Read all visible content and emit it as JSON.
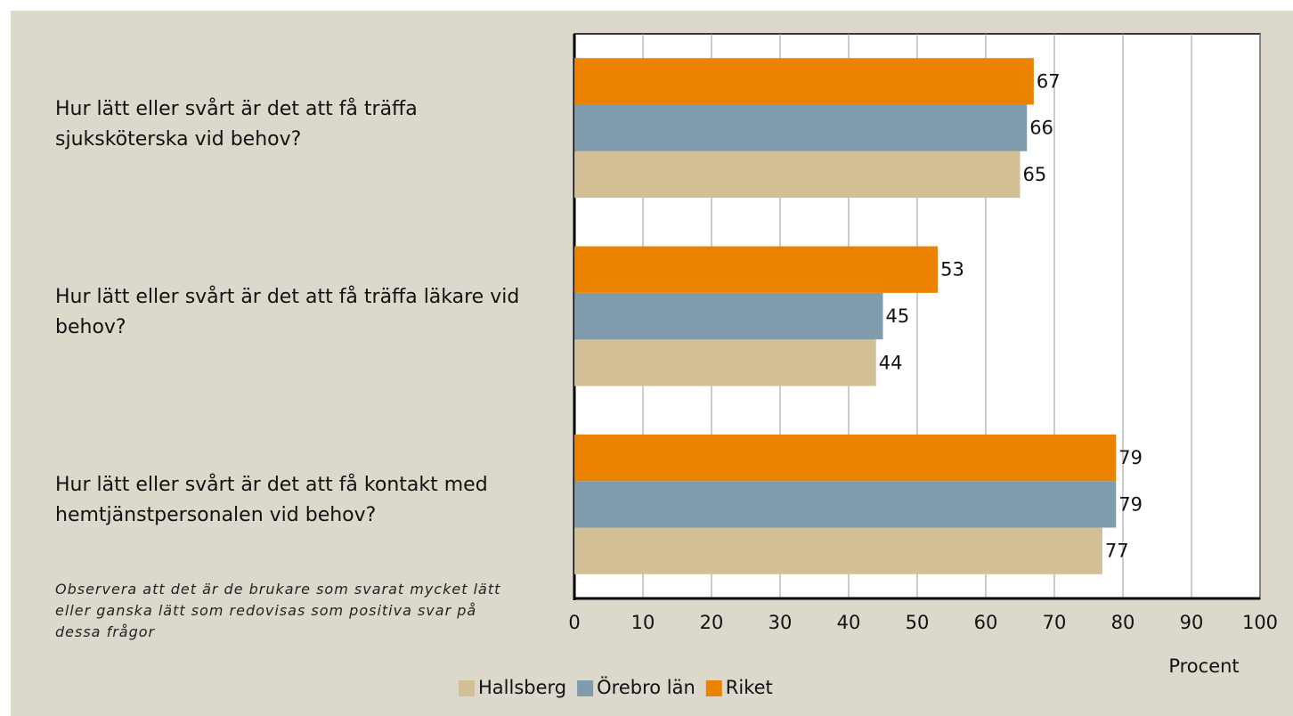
{
  "chart_data": {
    "type": "hbar",
    "categories": [
      "Hur lätt eller svårt är det att få träffa sjuksköterska vid behov?",
      "Hur lätt eller svårt är det att få träffa läkare vid behov?",
      "Hur lätt eller svårt är det att få kontakt med hemtjänstpersonalen vid behov?"
    ],
    "series": [
      {
        "name": "Hallsberg",
        "color": "#d3bf96",
        "values": [
          65,
          44,
          77
        ]
      },
      {
        "name": "Örebro län",
        "color": "#7f9bac",
        "values": [
          66,
          45,
          79
        ]
      },
      {
        "name": "Riket",
        "color": "#eb8300",
        "values": [
          67,
          53,
          79
        ]
      }
    ],
    "xlim": [
      0,
      100
    ],
    "xticks": [
      0,
      10,
      20,
      30,
      40,
      50,
      60,
      70,
      80,
      90,
      100
    ],
    "x_label": "Procent",
    "grid": true,
    "legend": "bottom",
    "note": "Observera att det är de brukare som svarat mycket lätt eller ganska lätt som redovisas som positiva svar på dessa frågor"
  }
}
